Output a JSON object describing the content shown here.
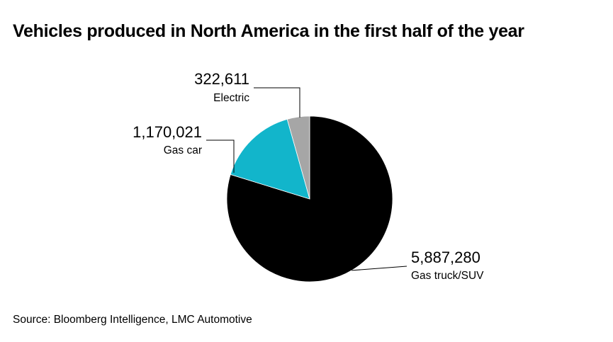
{
  "chart_data": {
    "type": "pie",
    "title": "Vehicles produced in North America in the first half of the year",
    "source": "Source: Bloomberg Intelligence, LMC Automotive",
    "slices": [
      {
        "label": "Gas truck/SUV",
        "value": 5887280,
        "value_text": "5,887,280",
        "color": "#000000"
      },
      {
        "label": "Gas car",
        "value": 1170021,
        "value_text": "1,170,021",
        "color": "#12b5cb"
      },
      {
        "label": "Electric",
        "value": 322611,
        "value_text": "322,611",
        "color": "#a6a6a6"
      }
    ],
    "start_angle_deg": 0,
    "direction": "clockwise"
  }
}
